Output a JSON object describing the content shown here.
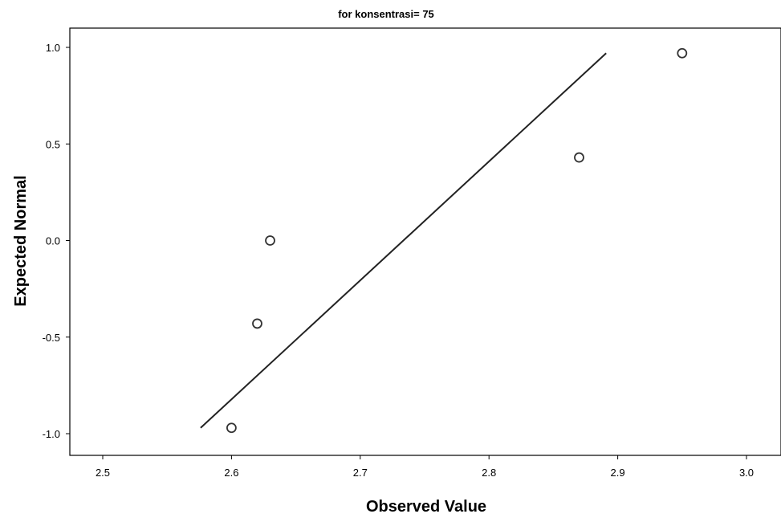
{
  "chart_data": {
    "type": "scatter",
    "title": "for konsentrasi= 75",
    "xlabel": "Observed Value",
    "ylabel": "Expected Normal",
    "xlim": [
      2.475,
      3.025
    ],
    "ylim": [
      -1.1,
      1.1
    ],
    "xticks": [
      2.5,
      2.6,
      2.7,
      2.8,
      2.9,
      3.0
    ],
    "xtick_labels": [
      "2.5",
      "2.6",
      "2.7",
      "2.8",
      "2.9",
      "3.0"
    ],
    "yticks": [
      1.0,
      0.5,
      0.0,
      -0.5,
      -1.0
    ],
    "ytick_labels": [
      "1.0",
      "0.5",
      "0.0",
      "-0.5",
      "-1.0"
    ],
    "grid": false,
    "points": [
      {
        "x": 2.6,
        "y": -0.97
      },
      {
        "x": 2.62,
        "y": -0.43
      },
      {
        "x": 2.63,
        "y": 0.0
      },
      {
        "x": 2.87,
        "y": 0.43
      },
      {
        "x": 2.95,
        "y": 0.97
      }
    ],
    "reference_line": {
      "x": [
        2.576,
        2.891
      ],
      "y": [
        -0.97,
        0.97
      ]
    },
    "colors": {
      "points": "#333333",
      "line": "#222222",
      "axis": "#000000"
    }
  }
}
